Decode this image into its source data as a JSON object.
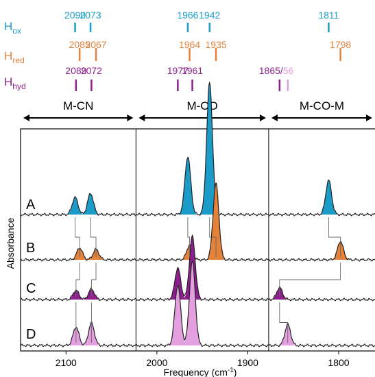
{
  "chart_data": {
    "type": "line",
    "xlabel": "Frequency (cm",
    "xlabel_sup": "-1",
    "xlabel_close": ")",
    "ylabel": "Absorbance",
    "xlim": [
      2150,
      1760
    ],
    "x_ticks": [
      {
        "value": 2100,
        "label": "2100"
      },
      {
        "value": 2000,
        "label": "2000"
      },
      {
        "value": 1900,
        "label": "1900"
      },
      {
        "value": 1800,
        "label": "1800"
      }
    ],
    "regions": [
      {
        "label": "M-CN",
        "from": 2150,
        "to": 2023
      },
      {
        "label": "M-CO",
        "from": 2023,
        "to": 1877
      },
      {
        "label": "M-CO-M",
        "from": 1877,
        "to": 1760
      }
    ],
    "dividers": [
      2023,
      1877
    ],
    "stick_rows": [
      {
        "key": "ox",
        "label_main": "H",
        "label_sub": "ox",
        "color": "#1a9bc8",
        "lines": [
          {
            "x": 2090,
            "label": "2090"
          },
          {
            "x": 2073,
            "label": "2073"
          },
          {
            "x": 1966,
            "label": "1966"
          },
          {
            "x": 1942,
            "label": "1942"
          },
          {
            "x": 1811,
            "label": "1811"
          }
        ]
      },
      {
        "key": "red",
        "label_main": "H",
        "label_sub": "red",
        "color": "#e4823a",
        "lines": [
          {
            "x": 2085,
            "label": "2085"
          },
          {
            "x": 2067,
            "label": "2067"
          },
          {
            "x": 1964,
            "label": "1964"
          },
          {
            "x": 1935,
            "label": "1935"
          },
          {
            "x": 1798,
            "label": "1798"
          }
        ]
      },
      {
        "key": "hyd",
        "label_main": "H",
        "label_sub": "hyd",
        "color": "#8e1f8e",
        "lines": [
          {
            "x": 2089,
            "label": "2089"
          },
          {
            "x": 2072,
            "label": "2072"
          },
          {
            "x": 1977,
            "label": "1977"
          },
          {
            "x": 1961,
            "label": "1961"
          },
          {
            "x": 1865,
            "label": "1865/"
          },
          {
            "x": 1856,
            "label": "56",
            "color": "#e39fde"
          }
        ]
      }
    ],
    "series": [
      {
        "name": "A",
        "peaks": [
          {
            "x": 2090,
            "height": 0.13,
            "color": "#1a9bc8"
          },
          {
            "x": 2073,
            "height": 0.16,
            "color": "#1a9bc8"
          },
          {
            "x": 1966,
            "height": 0.44,
            "color": "#1a9bc8"
          },
          {
            "x": 1942,
            "height": 1.0,
            "color": "#1a9bc8"
          },
          {
            "x": 1811,
            "height": 0.26,
            "color": "#1a9bc8"
          }
        ]
      },
      {
        "name": "B",
        "peaks": [
          {
            "x": 2085,
            "height": 0.09,
            "color": "#e4823a"
          },
          {
            "x": 2067,
            "height": 0.08,
            "color": "#e4823a"
          },
          {
            "x": 1964,
            "height": 0.11,
            "color": "#e4823a"
          },
          {
            "x": 1935,
            "height": 0.58,
            "color": "#e4823a"
          },
          {
            "x": 1798,
            "height": 0.14,
            "color": "#e4823a"
          }
        ]
      },
      {
        "name": "C",
        "peaks": [
          {
            "x": 2089,
            "height": 0.07,
            "color": "#8e1f8e"
          },
          {
            "x": 2072,
            "height": 0.08,
            "color": "#8e1f8e"
          },
          {
            "x": 1977,
            "height": 0.24,
            "color": "#8e1f8e"
          },
          {
            "x": 1961,
            "height": 0.48,
            "color": "#8e1f8e"
          },
          {
            "x": 1865,
            "height": 0.09,
            "color": "#8e1f8e"
          }
        ]
      },
      {
        "name": "D",
        "peaks": [
          {
            "x": 2089,
            "height": 0.14,
            "color": "#e39fde"
          },
          {
            "x": 2072,
            "height": 0.17,
            "color": "#e39fde"
          },
          {
            "x": 1977,
            "height": 0.46,
            "color": "#e39fde"
          },
          {
            "x": 1961,
            "height": 0.64,
            "color": "#e39fde"
          },
          {
            "x": 1856,
            "height": 0.16,
            "color": "#e39fde"
          }
        ]
      }
    ],
    "correlations": [
      [
        [
          2090,
          2089,
          2089
        ],
        [
          2073,
          2072,
          2072
        ]
      ],
      [
        [
          2090,
          2085
        ]
      ],
      [
        [
          2073,
          2067
        ]
      ],
      [
        [
          1966,
          1964
        ]
      ],
      [
        [
          1942,
          1935
        ]
      ],
      [
        [
          1811,
          1798
        ]
      ],
      [
        [
          1798,
          1865
        ]
      ],
      [
        [
          1865,
          1856
        ]
      ]
    ]
  }
}
